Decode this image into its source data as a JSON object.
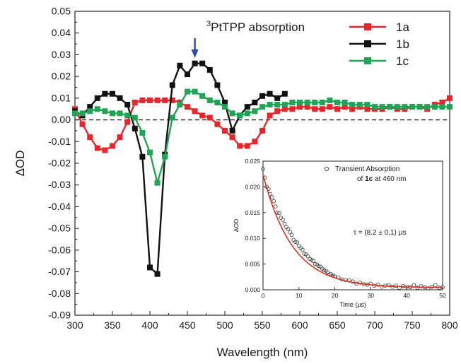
{
  "chart_data": [
    {
      "type": "line",
      "xlabel": "Wavelength (nm)",
      "ylabel": "ΔOD",
      "xlim": [
        300,
        800
      ],
      "ylim": [
        -0.09,
        0.05
      ],
      "x_ticks": [
        300,
        350,
        400,
        450,
        500,
        550,
        600,
        650,
        700,
        750,
        800
      ],
      "y_ticks": [
        0.05,
        0.04,
        0.03,
        0.02,
        0.01,
        0.0,
        -0.01,
        -0.02,
        -0.03,
        -0.04,
        -0.05,
        -0.06,
        -0.07,
        -0.08,
        -0.09
      ],
      "x_tick_labels": [
        "300",
        "350",
        "400",
        "450",
        "500",
        "550",
        "600",
        "650",
        "700",
        "750",
        "800"
      ],
      "y_tick_labels": [
        "0.05",
        "0.04",
        "0.03",
        "0.02",
        "0.01",
        "0.00",
        "-0.01",
        "-0.02",
        "-0.03",
        "-0.04",
        "-0.05",
        "-0.06",
        "-0.07",
        "-0.08",
        "-0.09"
      ],
      "zero_line": "dashed",
      "legend": "top-right",
      "annotation": {
        "sup": "3",
        "text": "PtTPP absorption",
        "x": 460
      },
      "series": [
        {
          "name": "1a",
          "color": "#e8252a",
          "marker": "square",
          "x": [
            300,
            310,
            320,
            330,
            340,
            350,
            360,
            370,
            380,
            390,
            400,
            410,
            420,
            430,
            440,
            450,
            460,
            470,
            480,
            490,
            500,
            510,
            520,
            530,
            540,
            550,
            560,
            570,
            580,
            590,
            600,
            610,
            620,
            630,
            640,
            650,
            660,
            670,
            680,
            690,
            700,
            710,
            720,
            730,
            740,
            750,
            760,
            770,
            780,
            790,
            800
          ],
          "y": [
            0.005,
            -0.002,
            -0.008,
            -0.013,
            -0.014,
            -0.012,
            -0.008,
            -0.001,
            0.008,
            0.009,
            0.009,
            0.009,
            0.009,
            0.009,
            0.008,
            0.006,
            0.004,
            0.002,
            0.001,
            -0.002,
            -0.005,
            -0.008,
            -0.012,
            -0.012,
            -0.01,
            -0.005,
            0.002,
            0.004,
            0.005,
            0.005,
            0.006,
            0.006,
            0.005,
            0.005,
            0.006,
            0.005,
            0.006,
            0.005,
            0.006,
            0.005,
            0.005,
            0.005,
            0.006,
            0.005,
            0.005,
            0.006,
            0.006,
            0.005,
            0.007,
            0.008,
            0.01
          ]
        },
        {
          "name": "1b",
          "color": "#111111",
          "marker": "square",
          "x": [
            300,
            310,
            320,
            330,
            340,
            350,
            360,
            370,
            380,
            390,
            400,
            410,
            420,
            430,
            440,
            450,
            460,
            470,
            480,
            490,
            500,
            510,
            520,
            530,
            540,
            550,
            560,
            570,
            580
          ],
          "y": [
            0.004,
            0.002,
            0.006,
            0.01,
            0.012,
            0.012,
            0.01,
            0.007,
            -0.004,
            -0.017,
            -0.068,
            -0.071,
            -0.016,
            0.016,
            0.025,
            0.021,
            0.026,
            0.026,
            0.023,
            0.016,
            0.008,
            -0.005,
            0.002,
            0.006,
            0.008,
            0.011,
            0.012,
            0.01,
            0.012
          ]
        },
        {
          "name": "1c",
          "color": "#20a455",
          "marker": "square",
          "x": [
            300,
            310,
            320,
            330,
            340,
            350,
            360,
            370,
            380,
            390,
            400,
            410,
            420,
            430,
            440,
            450,
            460,
            470,
            480,
            490,
            500,
            510,
            520,
            530,
            540,
            550,
            560,
            570,
            580,
            590,
            600,
            610,
            620,
            630,
            640,
            650,
            660,
            670,
            680,
            690,
            700,
            710,
            720,
            730,
            740,
            750,
            760,
            770,
            780,
            790,
            800
          ],
          "y": [
            0.003,
            0.003,
            0.004,
            0.005,
            0.004,
            0.003,
            0.003,
            0.002,
            0.001,
            -0.006,
            -0.015,
            -0.029,
            -0.017,
            0.001,
            0.007,
            0.013,
            0.013,
            0.011,
            0.009,
            0.008,
            0.006,
            0.003,
            0.002,
            0.003,
            0.004,
            0.006,
            0.007,
            0.007,
            0.007,
            0.008,
            0.008,
            0.008,
            0.008,
            0.008,
            0.009,
            0.008,
            0.008,
            0.007,
            0.007,
            0.007,
            0.006,
            0.006,
            0.006,
            0.006,
            0.006,
            0.006,
            0.006,
            0.006,
            0.006,
            0.006,
            0.006
          ]
        }
      ]
    },
    {
      "type": "scatter",
      "inset": true,
      "xlabel": "Time (μs)",
      "ylabel": "ΔOD",
      "xlim": [
        0,
        50
      ],
      "ylim": [
        0,
        0.025
      ],
      "x_ticks": [
        0,
        10,
        20,
        30,
        40,
        50
      ],
      "y_ticks": [
        0.0,
        0.005,
        0.01,
        0.015,
        0.02,
        0.025
      ],
      "x_tick_labels": [
        "0",
        "10",
        "20",
        "30",
        "40",
        "50"
      ],
      "y_tick_labels": [
        "0.000",
        "0.005",
        "0.010",
        "0.015",
        "0.020",
        "0.025"
      ],
      "legend": {
        "line1": "Transient Absorption",
        "line2_pre": "of ",
        "line2_bold": "1c",
        "line2_post": " at 460 nm"
      },
      "fit_annotation": "τ = (8.2 ± 0.1) μs",
      "fit": {
        "amplitude": 0.022,
        "tau": 8.2,
        "offset": 0.0004,
        "color": "#e03020"
      },
      "points": {
        "color": "#333333",
        "x": [
          0.0,
          0.5,
          1.0,
          1.5,
          2.0,
          2.5,
          3.0,
          3.5,
          4.0,
          4.5,
          5.0,
          5.5,
          6.0,
          6.5,
          7.0,
          7.5,
          8.0,
          8.5,
          9.0,
          9.5,
          10.0,
          10.5,
          11.0,
          11.5,
          12.0,
          12.5,
          13.0,
          13.5,
          14.0,
          14.5,
          15.0,
          15.5,
          16.0,
          16.5,
          17.0,
          17.5,
          18.0,
          18.5,
          19.0,
          19.5,
          20.0,
          21.0,
          22.0,
          23.0,
          24.0,
          25.0,
          26.0,
          27.0,
          28.0,
          29.0,
          30.0,
          31.0,
          32.0,
          33.0,
          34.0,
          35.0,
          36.0,
          37.0,
          38.0,
          39.0,
          40.0,
          41.0,
          42.0,
          43.0,
          44.0,
          45.0,
          46.0,
          47.0,
          48.0,
          49.0,
          50.0
        ],
        "y": [
          0.0235,
          0.0218,
          0.02,
          0.0196,
          0.0186,
          0.018,
          0.0172,
          0.0162,
          0.015,
          0.0149,
          0.014,
          0.0136,
          0.0128,
          0.0122,
          0.0118,
          0.0112,
          0.0107,
          0.0097,
          0.0093,
          0.0092,
          0.0085,
          0.0081,
          0.0078,
          0.007,
          0.0069,
          0.0065,
          0.006,
          0.0058,
          0.0056,
          0.005,
          0.0049,
          0.0046,
          0.0045,
          0.0041,
          0.0038,
          0.0037,
          0.0034,
          0.003,
          0.003,
          0.0027,
          0.0026,
          0.0024,
          0.002,
          0.0019,
          0.0018,
          0.0016,
          0.0012,
          0.0014,
          0.0011,
          0.001,
          0.0012,
          0.0008,
          0.001,
          0.0006,
          0.0008,
          0.0009,
          0.0006,
          0.0008,
          0.0004,
          0.0007,
          0.0006,
          0.0005,
          0.0009,
          0.0004,
          0.0007,
          0.0005,
          0.0003,
          0.0006,
          0.0009,
          0.0004,
          0.0005
        ]
      }
    }
  ]
}
